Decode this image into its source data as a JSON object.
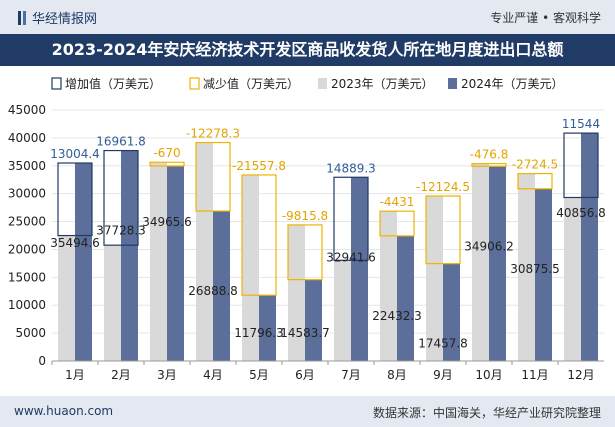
{
  "header": {
    "brand": "华经情报网",
    "tagline": "专业严谨 • 客观科学"
  },
  "footer": {
    "url": "www.huaon.com",
    "source": "数据来源：中国海关，华经产业研究院整理"
  },
  "colors": {
    "bar2023": "#d9d9d9",
    "bar2024": "#5b6f9a",
    "increase": "#1f3b66",
    "decrease": "#f0b400",
    "header_bg": "#e4e9f1",
    "title_bg": "#1f3b66"
  },
  "chart_data": {
    "type": "bar",
    "title": "2023-2024年安庆经济技术开发区商品收发货人所在地月度进出口总额",
    "legend": [
      "增加值（万美元）",
      "减少值（万美元）",
      "2023年（万美元）",
      "2024年（万美元）"
    ],
    "categories": [
      "1月",
      "2月",
      "3月",
      "4月",
      "5月",
      "6月",
      "7月",
      "8月",
      "9月",
      "10月",
      "11月",
      "12月"
    ],
    "series": [
      {
        "name": "2023年（万美元）",
        "values": [
          22490,
          20766,
          35636,
          39167,
          33354,
          24399,
          18052,
          26863,
          29582,
          35383,
          33600,
          29313
        ]
      },
      {
        "name": "2024年（万美元）",
        "values": [
          35494.6,
          37728.3,
          34965.6,
          26888.8,
          11796.3,
          14583.7,
          32941.6,
          22432.3,
          17457.8,
          34906.2,
          30875.5,
          40856.8
        ]
      }
    ],
    "value_labels": [
      "35494.6",
      "37728.3",
      "34965.6",
      "26888.8",
      "11796.3",
      "14583.7",
      "32941.6",
      "22432.3",
      "17457.8",
      "34906.2",
      "30875.5",
      "40856.8"
    ],
    "change_labels": [
      "13004.4",
      "16961.8",
      "-670",
      "-12278.3",
      "-21557.8",
      "-9815.8",
      "14889.3",
      "-4431",
      "-12124.5",
      "-476.8",
      "-2724.5",
      "11544"
    ],
    "changes": [
      13004.4,
      16961.8,
      -670,
      -12278.3,
      -21557.8,
      -9815.8,
      14889.3,
      -4431,
      -12124.5,
      -476.8,
      -2724.5,
      11544
    ],
    "y_ticks": [
      "0",
      "5000",
      "10000",
      "15000",
      "20000",
      "25000",
      "30000",
      "35000",
      "40000",
      "45000"
    ],
    "ylim": [
      0,
      45000
    ],
    "xlabel": "",
    "ylabel": ""
  }
}
